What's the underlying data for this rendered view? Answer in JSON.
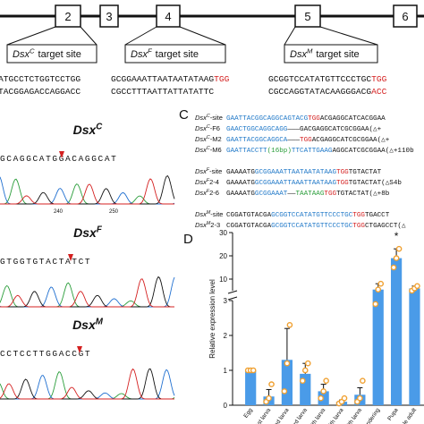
{
  "gene_map": {
    "exons": [
      "2",
      "3",
      "4",
      "5",
      "6"
    ],
    "target_sites": [
      {
        "gene": "Dsx",
        "sup": "C",
        "label": "target site",
        "top": [
          {
            "text": "ATGCCTCTGGTCCTGG",
            "color": "#111"
          }
        ],
        "bottom": [
          {
            "text": "TACGGAGACCAGGACC",
            "color": "#111"
          }
        ]
      },
      {
        "gene": "Dsx",
        "sup": "F",
        "label": "target site",
        "top": [
          {
            "text": "GCGGAAATTAATAATATAAG",
            "color": "#111"
          },
          {
            "text": "TGG",
            "color": "#d42020"
          }
        ],
        "bottom": [
          {
            "text": "CGCCTTTAATTATTATATTC",
            "color": "#111"
          }
        ]
      },
      {
        "gene": "Dsx",
        "sup": "M",
        "label": "target site",
        "top": [
          {
            "text": "GCGGTCCATATGTTCCCTGC",
            "color": "#111"
          },
          {
            "text": "TGG",
            "color": "#d42020"
          }
        ],
        "bottom": [
          {
            "text": "CGCCAGGTATACAAGGGACG",
            "color": "#111"
          },
          {
            "text": "ACC",
            "color": "#d42020"
          }
        ]
      }
    ]
  },
  "chromatograms": [
    {
      "gene": "Dsx",
      "sup": "C",
      "sequence": "GCAGGCATGGACAGGCAT",
      "axis": [
        "240",
        "250"
      ]
    },
    {
      "gene": "Dsx",
      "sup": "F",
      "sequence": "GTGGTGTACTATCT",
      "axis": []
    },
    {
      "gene": "Dsx",
      "sup": "M",
      "sequence": "CCTCCTTGGACCGT",
      "axis": []
    }
  ],
  "panel_c": {
    "letter": "C",
    "groups": [
      [
        {
          "gene": "Dsx",
          "sup": "C",
          "suffix": "-site",
          "segments": [
            {
              "text": "GAATTACGGCAGGCAGTACG",
              "color": "#1f78c8"
            },
            {
              "text": "TGG",
              "color": "#d42020"
            },
            {
              "text": "ACGAGGCATCACGGAA",
              "color": "#111"
            }
          ]
        },
        {
          "gene": "Dsx",
          "sup": "C",
          "suffix": "-F6",
          "segments": [
            {
              "text": "GAACTGGCAGGCAGG",
              "color": "#1f78c8"
            },
            {
              "text": "———",
              "color": "#111"
            },
            {
              "text": "GACGAGGCATCGCGGAA(△+",
              "color": "#111"
            }
          ]
        },
        {
          "gene": "Dsx",
          "sup": "C",
          "suffix": "-M2",
          "segments": [
            {
              "text": "GAATTACGGCAGGCA",
              "color": "#1f78c8"
            },
            {
              "text": "———",
              "color": "#111"
            },
            {
              "text": "TGG",
              "color": "#d42020"
            },
            {
              "text": "ACGAGGCATCGCGGAA(△+",
              "color": "#111"
            }
          ]
        },
        {
          "gene": "Dsx",
          "sup": "C",
          "suffix": "-M6",
          "segments": [
            {
              "text": "GAATTACCTT",
              "color": "#1f78c8"
            },
            {
              "text": "(16bp)",
              "color": "#2a9d3a"
            },
            {
              "text": "TTCATTGAAG",
              "color": "#1f78c8"
            },
            {
              "text": "AGGCATCGCGGAA(△+110b",
              "color": "#111"
            }
          ]
        }
      ],
      [
        {
          "gene": "Dsx",
          "sup": "F",
          "suffix": "-site",
          "segments": [
            {
              "text": "GAAAATG",
              "color": "#111"
            },
            {
              "text": "GCGGAAATTAATAATATAAG",
              "color": "#1f78c8"
            },
            {
              "text": "TGG",
              "color": "#d42020"
            },
            {
              "text": "TGTACTAT",
              "color": "#111"
            }
          ]
        },
        {
          "gene": "Dsx",
          "sup": "F",
          "suffix": "2-4",
          "segments": [
            {
              "text": "GAAAATG",
              "color": "#111"
            },
            {
              "text": "GCGGAAATTAAATTAATAAG",
              "color": "#1f78c8"
            },
            {
              "text": "TGG",
              "color": "#d42020"
            },
            {
              "text": "TGTACTAT(△S4b",
              "color": "#111"
            }
          ]
        },
        {
          "gene": "Dsx",
          "sup": "F",
          "suffix": "2-6",
          "segments": [
            {
              "text": "GAAAATG",
              "color": "#111"
            },
            {
              "text": "GCGGAAAT",
              "color": "#1f78c8"
            },
            {
              "text": "——",
              "color": "#111"
            },
            {
              "text": "TAATAAG",
              "color": "#2a9d3a"
            },
            {
              "text": "TGG",
              "color": "#d42020"
            },
            {
              "text": "TGTACTAT(△+8b",
              "color": "#111"
            }
          ]
        }
      ],
      [
        {
          "gene": "Dsx",
          "sup": "M",
          "suffix": "-site",
          "segments": [
            {
              "text": "CGGATGTACGA",
              "color": "#111"
            },
            {
              "text": "GCGGTCCATATGTTCCCTGC",
              "color": "#1f78c8"
            },
            {
              "text": "TGG",
              "color": "#d42020"
            },
            {
              "text": "TGACCT",
              "color": "#111"
            }
          ]
        },
        {
          "gene": "Dsx",
          "sup": "M",
          "suffix": "2-3",
          "segments": [
            {
              "text": "CGGATGTACGA",
              "color": "#111"
            },
            {
              "text": "GCGGTCCATATGTTCCCTGC",
              "color": "#1f78c8"
            },
            {
              "text": "TGG",
              "color": "#d42020"
            },
            {
              "text": "CTGAGCCT(△",
              "color": "#111"
            }
          ]
        }
      ]
    ]
  },
  "chart_data": {
    "type": "bar",
    "panel": "D",
    "y_label": "Relative expression level",
    "categories": [
      "Egg",
      "1st larva",
      "2nd larva",
      "3rd larva",
      "4th larva",
      "5th larva",
      "6th larva",
      "Wandering",
      "Pupa",
      "Female adult",
      "Male"
    ],
    "values": [
      1.0,
      0.25,
      1.3,
      0.9,
      0.4,
      0.1,
      0.3,
      5.5,
      19,
      6,
      6
    ],
    "errors": [
      0.05,
      0.2,
      0.9,
      0.3,
      0.2,
      0.05,
      0.2,
      2.5,
      4,
      1,
      1
    ],
    "replicates": [
      [
        1.0,
        1.0,
        1.0
      ],
      [
        0.1,
        0.2,
        0.6
      ],
      [
        0.4,
        1.2,
        2.3
      ],
      [
        0.7,
        1.0,
        1.2
      ],
      [
        0.2,
        0.4,
        0.7
      ],
      [
        0.05,
        0.1,
        0.2
      ],
      [
        0.1,
        0.2,
        0.7
      ],
      [
        2.9,
        5.5,
        8
      ],
      [
        15,
        19,
        23
      ],
      [
        5,
        6,
        7
      ],
      [
        5,
        6,
        7
      ]
    ],
    "color": "#4a9be8",
    "point_color": "#f0a030",
    "ylim_lower": [
      0,
      3
    ],
    "ylim_upper": [
      5,
      30
    ],
    "yticks": [
      0,
      1,
      2,
      3,
      10,
      20,
      30
    ],
    "annotations": [
      {
        "category": 8,
        "text": "*"
      }
    ]
  }
}
